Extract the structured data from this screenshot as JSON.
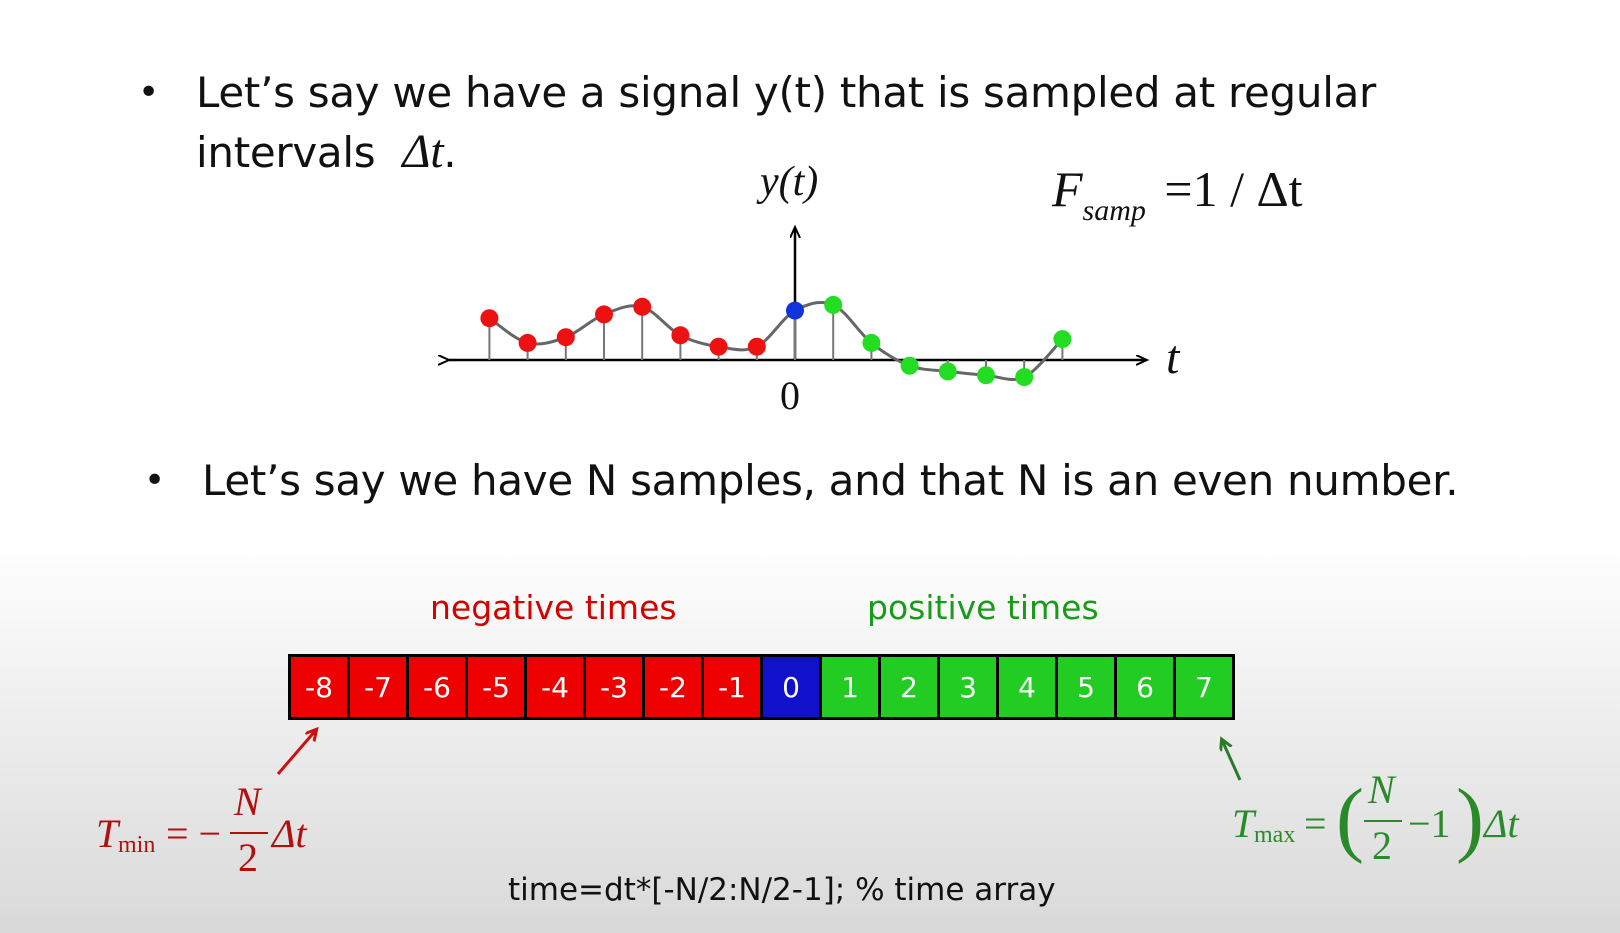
{
  "bullets": [
    {
      "line1": "Let’s say we have a signal y(t) that is sampled at regular",
      "line2": "intervals",
      "symbol": "Δt",
      "period": "."
    },
    {
      "line1": "Let’s say we have N samples, and that N is an even number."
    }
  ],
  "diagram": {
    "y_axis_label": "y(t)",
    "t_axis_label": "t",
    "origin_label": "0",
    "fsamp_formula": {
      "F": "F",
      "sub": "samp",
      "rhs": "=1 / Δt"
    },
    "colors": {
      "negative": "#ee1111",
      "zero": "#1133dd",
      "positive": "#22dd22",
      "curve": "#666666"
    },
    "samples": [
      {
        "index": -8,
        "y": 1.1
      },
      {
        "index": -7,
        "y": 0.45
      },
      {
        "index": -6,
        "y": 0.6
      },
      {
        "index": -5,
        "y": 1.2
      },
      {
        "index": -4,
        "y": 1.4
      },
      {
        "index": -3,
        "y": 0.65
      },
      {
        "index": -2,
        "y": 0.35
      },
      {
        "index": -1,
        "y": 0.35
      },
      {
        "index": 0,
        "y": 1.3
      },
      {
        "index": 1,
        "y": 1.45
      },
      {
        "index": 2,
        "y": 0.45
      },
      {
        "index": 3,
        "y": -0.15
      },
      {
        "index": 4,
        "y": -0.3
      },
      {
        "index": 5,
        "y": -0.4
      },
      {
        "index": 6,
        "y": -0.45
      },
      {
        "index": 7,
        "y": 0.55
      }
    ]
  },
  "array": {
    "negative_label": "negative times",
    "positive_label": "positive times",
    "cells": [
      "-8",
      "-7",
      "-6",
      "-5",
      "-4",
      "-3",
      "-2",
      "-1",
      "0",
      "1",
      "2",
      "3",
      "4",
      "5",
      "6",
      "7"
    ],
    "colors": {
      "negative": "#ee0000",
      "zero": "#1111cc",
      "positive": "#22cc22"
    }
  },
  "formulas": {
    "tmin": {
      "T": "T",
      "sub": "min",
      "eq": "= −",
      "num": "N",
      "den": "2",
      "tail": "Δt",
      "color": "#b01010"
    },
    "tmax": {
      "T": "T",
      "sub": "max",
      "eq": "=",
      "num": "N",
      "den": "2",
      "minus_one": "−1",
      "tail": "Δt",
      "color": "#2a8a2a"
    }
  },
  "code": "time=dt*[-N/2:N/2-1];   % time array"
}
